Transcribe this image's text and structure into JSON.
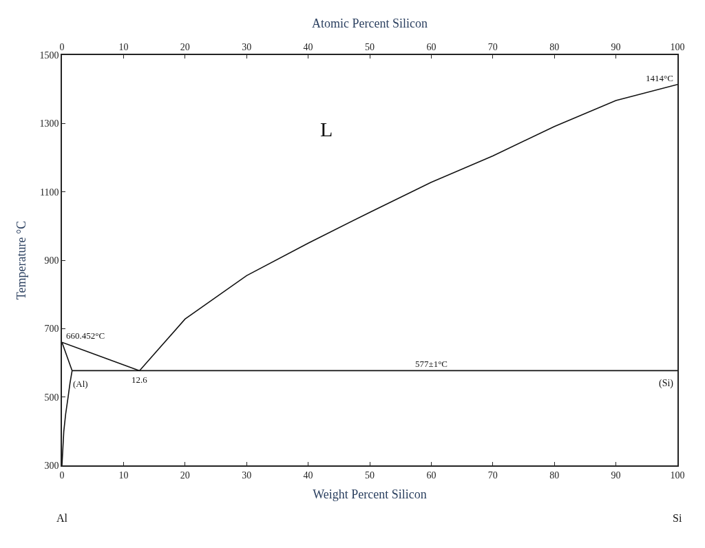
{
  "chart_data": {
    "type": "line",
    "xlabel": "Weight Percent Silicon",
    "x2label": "Atomic Percent Silicon",
    "ylabel": "Temperature °C",
    "series": [
      {
        "color": "#111111",
        "x": [
          0,
          12.6
        ],
        "values": [
          660,
          577
        ]
      },
      {
        "color": "#111111",
        "x": [
          12.6,
          20,
          30,
          40,
          50,
          60,
          70,
          80,
          90,
          100
        ],
        "values": [
          577,
          728,
          855,
          950,
          1040,
          1128,
          1205,
          1291,
          1367,
          1414
        ]
      },
      {
        "color": "#111111",
        "x": [
          1.65,
          100
        ],
        "values": [
          577,
          577
        ]
      },
      {
        "color": "#111111",
        "x": [
          0,
          1.65
        ],
        "values": [
          660,
          577
        ]
      },
      {
        "color": "#111111",
        "x": [
          1.65,
          1.3,
          1.0,
          0.6,
          0.3,
          0
        ],
        "values": [
          577,
          540,
          500,
          450,
          400,
          300
        ]
      }
    ],
    "xlim": [
      0,
      100
    ],
    "xticks": [
      0,
      10,
      20,
      30,
      40,
      50,
      60,
      70,
      80,
      90,
      100
    ],
    "x2lim": [
      0,
      100
    ],
    "x2ticks": [
      0,
      10,
      20,
      30,
      40,
      50,
      60,
      70,
      80,
      90,
      100
    ],
    "ylim": [
      300,
      1500
    ],
    "yticks": [
      300,
      500,
      700,
      900,
      1100,
      1300,
      1500
    ],
    "marker": "none",
    "line_style": "solid",
    "annotations": [
      "L",
      {
        "text": "1414°C",
        "x": 100,
        "y": 1414
      },
      {
        "text": "660.452°C",
        "x": 0,
        "y": 660
      },
      {
        "text": "12.6",
        "x": 12.6,
        "y": 577
      },
      {
        "text": "577±1°C",
        "x": 60,
        "y": 577
      },
      {
        "text": "(Al)",
        "x": 1.1,
        "y": 520
      },
      "(Si)",
      "Al",
      "Si"
    ]
  }
}
